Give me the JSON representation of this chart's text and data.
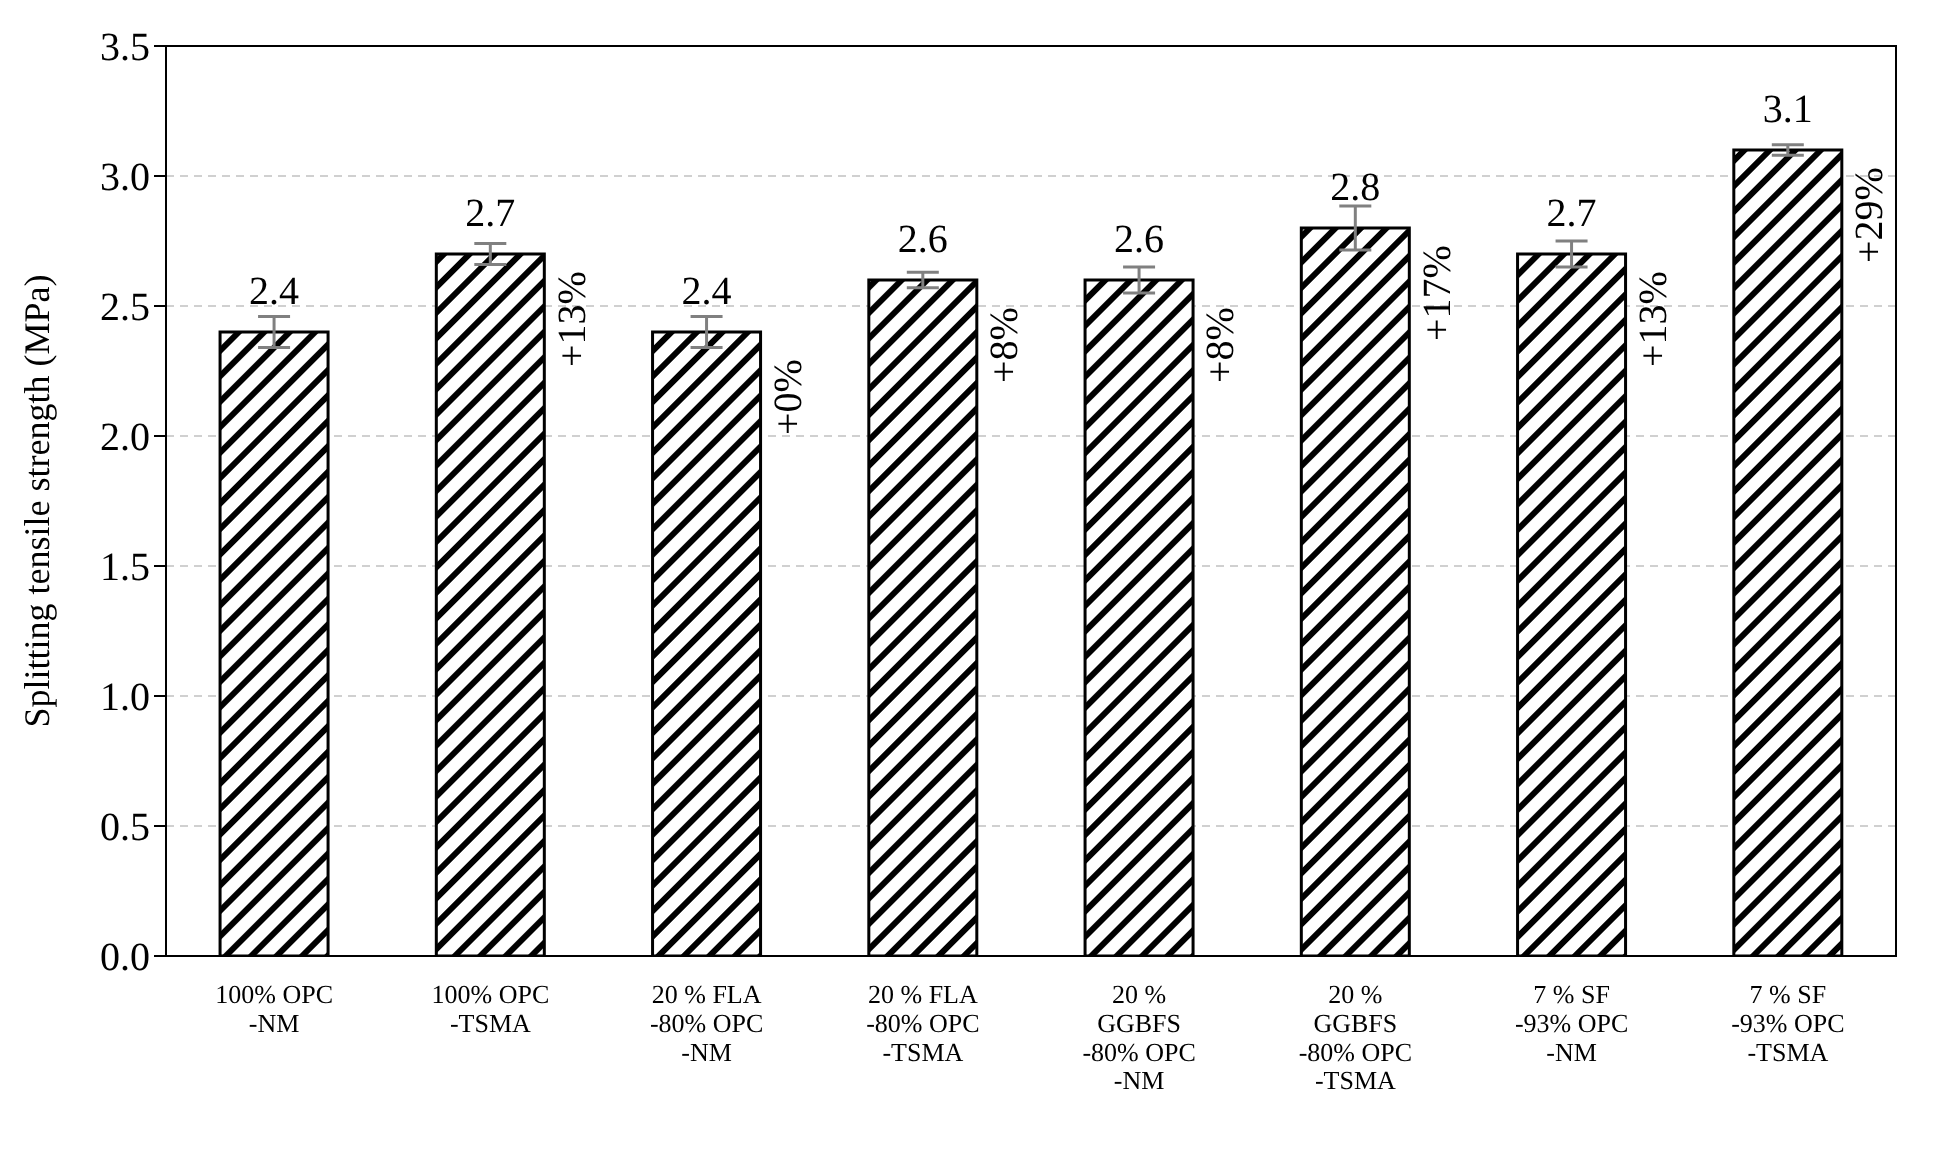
{
  "chart_data": {
    "type": "bar",
    "ylabel": "Splitting tensile strength (MPa)",
    "categories": [
      "100% OPC\n-NM",
      "100% OPC\n-TSMA",
      "20 % FLA\n-80% OPC\n-NM",
      "20 % FLA\n-80% OPC\n-TSMA",
      "20 %\nGGBFS\n-80% OPC\n-NM",
      "20 %\nGGBFS\n-80% OPC\n-TSMA",
      "7 % SF\n-93% OPC\n-NM",
      "7 % SF\n-93% OPC\n-TSMA"
    ],
    "values": [
      2.4,
      2.7,
      2.4,
      2.6,
      2.6,
      2.8,
      2.7,
      3.1
    ],
    "errors": [
      0.06,
      0.04,
      0.06,
      0.03,
      0.05,
      0.085,
      0.05,
      0.02
    ],
    "color": "#000000",
    "data_labels": true,
    "grid": "y",
    "ylim": [
      0,
      3.5
    ],
    "yticks": [
      {
        "value": 0,
        "label": "0.0"
      },
      {
        "value": 0.5,
        "label": "0.5"
      },
      {
        "value": 1,
        "label": "1.0"
      },
      {
        "value": 1.5,
        "label": "1.5"
      },
      {
        "value": 2,
        "label": "2.0"
      },
      {
        "value": 2.5,
        "label": "2.5"
      },
      {
        "value": 3,
        "label": "3.0"
      },
      {
        "value": 3.5,
        "label": "3.5"
      }
    ],
    "annotations": [
      "+13%",
      "+0%",
      "+8%",
      "+8%",
      "+17%",
      "+13%",
      "+29%"
    ]
  }
}
